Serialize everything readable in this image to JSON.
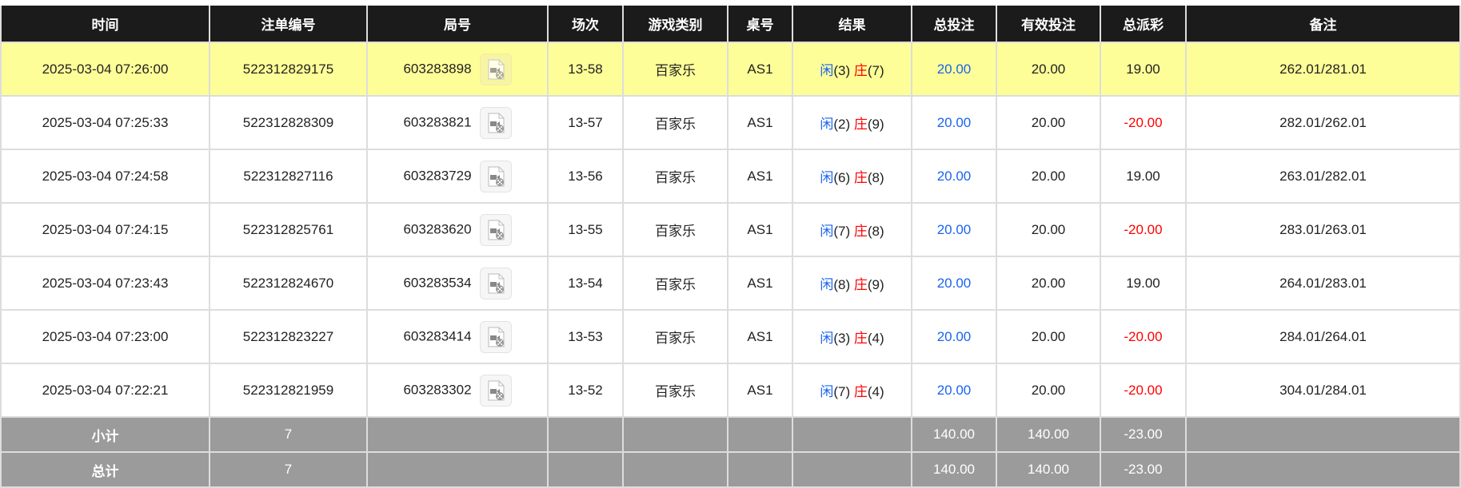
{
  "headers": [
    "时间",
    "注单编号",
    "局号",
    "场次",
    "游戏类别",
    "桌号",
    "结果",
    "总投注",
    "有效投注",
    "总派彩",
    "备注"
  ],
  "rows": [
    {
      "time": "2025-03-04 07:26:00",
      "bet_id": "522312829175",
      "round": "603283898",
      "session": "13-58",
      "game": "百家乐",
      "table": "AS1",
      "player_label": "闲",
      "player": "(3)",
      "banker_label": "庄",
      "banker": "(7)",
      "total_bet": "20.00",
      "valid_bet": "20.00",
      "payout": "19.00",
      "note": "262.01/281.01",
      "highlight": true,
      "icon": "video-replay-icon"
    },
    {
      "time": "2025-03-04 07:25:33",
      "bet_id": "522312828309",
      "round": "603283821",
      "session": "13-57",
      "game": "百家乐",
      "table": "AS1",
      "player_label": "闲",
      "player": "(2)",
      "banker_label": "庄",
      "banker": "(9)",
      "total_bet": "20.00",
      "valid_bet": "20.00",
      "payout": "-20.00",
      "note": "282.01/262.01",
      "icon": "video-replay-icon"
    },
    {
      "time": "2025-03-04 07:24:58",
      "bet_id": "522312827116",
      "round": "603283729",
      "session": "13-56",
      "game": "百家乐",
      "table": "AS1",
      "player_label": "闲",
      "player": "(6)",
      "banker_label": "庄",
      "banker": "(8)",
      "total_bet": "20.00",
      "valid_bet": "20.00",
      "payout": "19.00",
      "note": "263.01/282.01",
      "icon": "video-replay-icon"
    },
    {
      "time": "2025-03-04 07:24:15",
      "bet_id": "522312825761",
      "round": "603283620",
      "session": "13-55",
      "game": "百家乐",
      "table": "AS1",
      "player_label": "闲",
      "player": "(7)",
      "banker_label": "庄",
      "banker": "(8)",
      "total_bet": "20.00",
      "valid_bet": "20.00",
      "payout": "-20.00",
      "note": "283.01/263.01",
      "icon": "video-replay-icon"
    },
    {
      "time": "2025-03-04 07:23:43",
      "bet_id": "522312824670",
      "round": "603283534",
      "session": "13-54",
      "game": "百家乐",
      "table": "AS1",
      "player_label": "闲",
      "player": "(8)",
      "banker_label": "庄",
      "banker": "(9)",
      "total_bet": "20.00",
      "valid_bet": "20.00",
      "payout": "19.00",
      "note": "264.01/283.01",
      "icon": "video-replay-icon"
    },
    {
      "time": "2025-03-04 07:23:00",
      "bet_id": "522312823227",
      "round": "603283414",
      "session": "13-53",
      "game": "百家乐",
      "table": "AS1",
      "player_label": "闲",
      "player": "(3)",
      "banker_label": "庄",
      "banker": "(4)",
      "total_bet": "20.00",
      "valid_bet": "20.00",
      "payout": "-20.00",
      "note": "284.01/264.01",
      "icon": "video-replay-icon"
    },
    {
      "time": "2025-03-04 07:22:21",
      "bet_id": "522312821959",
      "round": "603283302",
      "session": "13-52",
      "game": "百家乐",
      "table": "AS1",
      "player_label": "闲",
      "player": "(7)",
      "banker_label": "庄",
      "banker": "(4)",
      "total_bet": "20.00",
      "valid_bet": "20.00",
      "payout": "-20.00",
      "note": "304.01/284.01",
      "icon": "video-replay-icon"
    }
  ],
  "subtotal": {
    "label": "小计",
    "count": "7",
    "total_bet": "140.00",
    "valid_bet": "140.00",
    "payout": "-23.00"
  },
  "total": {
    "label": "总计",
    "count": "7",
    "total_bet": "140.00",
    "valid_bet": "140.00",
    "payout": "-23.00"
  },
  "colors": {
    "header_bg": "#1b1b1b",
    "highlight_row": "#fefe98",
    "summary_bg": "#9b9b9b",
    "blue": "#1a64f0",
    "red": "#ff0000"
  }
}
